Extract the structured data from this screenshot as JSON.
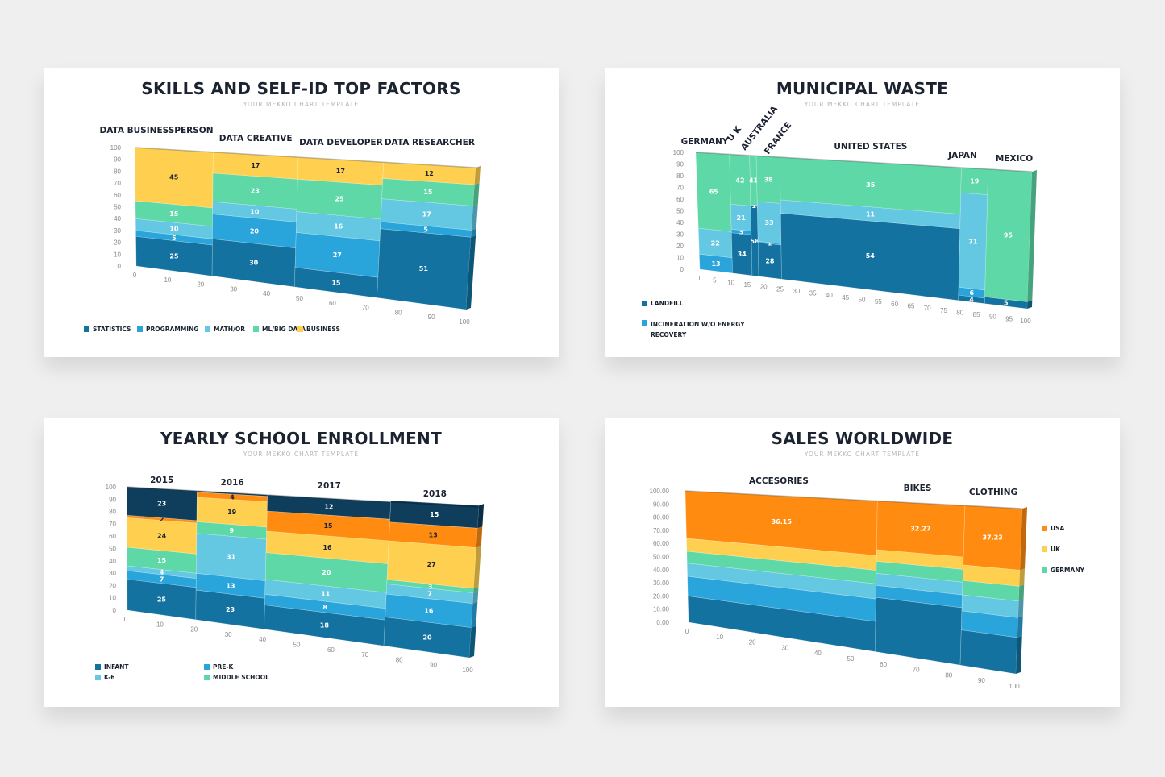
{
  "colors": {
    "navy": "#0f3d5c",
    "dark_blue": "#13729f",
    "blue": "#2aa5dc",
    "light_blue": "#64c8e2",
    "green": "#5fd8a8",
    "yellow": "#ffd050",
    "orange": "#ff8c10"
  },
  "chart_data": [
    {
      "type": "bar",
      "subtype": "mekko",
      "title": "SKILLS AND SELF-ID TOP FACTORS",
      "subtitle": "YOUR MEKKO CHART TEMPLATE",
      "categories": [
        "DATA BUSINESSPERSON",
        "DATA CREATIVE",
        "DATA DEVELOPER",
        "DATA RESEARCHER"
      ],
      "widths": [
        23,
        25,
        25,
        27
      ],
      "series": [
        {
          "name": "STATISTICS",
          "color": "#13729f",
          "values": [
            25,
            30,
            15,
            51
          ]
        },
        {
          "name": "PROGRAMMING",
          "color": "#2aa5dc",
          "values": [
            5,
            20,
            27,
            5
          ]
        },
        {
          "name": "MATH/OR",
          "color": "#64c8e2",
          "values": [
            10,
            10,
            16,
            17
          ]
        },
        {
          "name": "ML/BIG DATA",
          "color": "#5fd8a8",
          "values": [
            15,
            23,
            25,
            15
          ]
        },
        {
          "name": "BUSINESS",
          "color": "#ffd050",
          "values": [
            45,
            17,
            17,
            12
          ]
        }
      ],
      "yticks": [
        "0",
        "10",
        "20",
        "30",
        "40",
        "50",
        "60",
        "70",
        "80",
        "90",
        "100"
      ],
      "xticks": [
        "0",
        "10",
        "20",
        "30",
        "40",
        "50",
        "60",
        "70",
        "80",
        "90",
        "100"
      ],
      "ylim": [
        0,
        100
      ],
      "xlim": [
        0,
        100
      ],
      "legend": "bottom-left",
      "show_labels": true
    },
    {
      "type": "bar",
      "subtype": "mekko",
      "title": "MUNICIPAL WASTE",
      "subtitle": "YOUR MEKKO CHART TEMPLATE",
      "categories": [
        "GERMANY",
        "U K",
        "AUSTRALIA",
        "FRANCE",
        "UNITED STATES",
        "JAPAN",
        "MEXICO"
      ],
      "widths": [
        10,
        6,
        2,
        7,
        54,
        8,
        13
      ],
      "series": [
        {
          "name": "LANDFILL",
          "color": "#13729f",
          "values": [
            0,
            34,
            58,
            28,
            54,
            4,
            5
          ]
        },
        {
          "name": "INCINERATION W/O ENERGY RECOVERY",
          "color": "#2aa5dc",
          "values": [
            13,
            3,
            0,
            1,
            0,
            6,
            0
          ]
        },
        {
          "name": "",
          "color": "#64c8e2",
          "values": [
            22,
            21,
            1,
            33,
            11,
            71,
            0
          ]
        },
        {
          "name": "",
          "color": "#5fd8a8",
          "values": [
            65,
            42,
            41,
            38,
            35,
            19,
            95
          ]
        }
      ],
      "labels": [
        [
          "",
          "34",
          "58",
          "28",
          "54",
          "4",
          "5"
        ],
        [
          "13",
          "3",
          "",
          "1",
          "",
          "6",
          ""
        ],
        [
          "22",
          "21",
          "1",
          "33",
          "11",
          "71",
          ""
        ],
        [
          "65",
          "42",
          "41",
          "38",
          "35",
          "19",
          "95"
        ]
      ],
      "yticks": [
        "0",
        "10",
        "20",
        "30",
        "40",
        "50",
        "60",
        "70",
        "80",
        "90",
        "100"
      ],
      "xticks": [
        "0",
        "5",
        "10",
        "15",
        "20",
        "25",
        "30",
        "35",
        "40",
        "45",
        "50",
        "55",
        "60",
        "65",
        "70",
        "75",
        "80",
        "85",
        "90",
        "95",
        "100"
      ],
      "ylim": [
        0,
        100
      ],
      "xlim": [
        0,
        100
      ],
      "legend": "bottom-left"
    },
    {
      "type": "bar",
      "subtype": "mekko",
      "title": "YEARLY SCHOOL ENROLLMENT",
      "subtitle": "YOUR MEKKO CHART TEMPLATE",
      "categories": [
        "2015",
        "2016",
        "2017",
        "2018"
      ],
      "widths": [
        20,
        20,
        35,
        25
      ],
      "series": [
        {
          "name": "INFANT",
          "color": "#13729f",
          "values": [
            25,
            23,
            18,
            20
          ]
        },
        {
          "name": "PRE-K",
          "color": "#2aa5dc",
          "values": [
            7,
            13,
            8,
            16
          ]
        },
        {
          "name": "K-6",
          "color": "#64c8e2",
          "values": [
            4,
            31,
            11,
            7
          ]
        },
        {
          "name": "MIDDLE SCHOOL",
          "color": "#5fd8a8",
          "values": [
            15,
            9,
            20,
            3
          ]
        },
        {
          "name": "",
          "color": "#ffd050",
          "values": [
            24,
            19,
            16,
            27
          ]
        },
        {
          "name": "",
          "color": "#ff8c10",
          "values": [
            2,
            4,
            15,
            13
          ]
        },
        {
          "name": "",
          "color": "#0f3d5c",
          "values": [
            23,
            1,
            12,
            15
          ]
        }
      ],
      "labels": [
        [
          "25",
          "23",
          "18",
          "20"
        ],
        [
          "7",
          "13",
          "8",
          "16"
        ],
        [
          "4",
          "31",
          "11",
          "7"
        ],
        [
          "15",
          "9",
          "20",
          "3"
        ],
        [
          "24",
          "19",
          "16",
          "27"
        ],
        [
          "2",
          "4",
          "15",
          "13"
        ],
        [
          "23",
          "",
          "12",
          "15"
        ]
      ],
      "yticks": [
        "0",
        "10",
        "20",
        "30",
        "40",
        "50",
        "60",
        "70",
        "80",
        "90",
        "100"
      ],
      "xticks": [
        "0",
        "10",
        "20",
        "30",
        "40",
        "50",
        "60",
        "70",
        "80",
        "90",
        "100"
      ],
      "ylim": [
        0,
        100
      ],
      "xlim": [
        0,
        100
      ],
      "legend": "bottom-left"
    },
    {
      "type": "bar",
      "subtype": "mekko",
      "title": "SALES WORLDWIDE",
      "subtitle": "YOUR MEKKO CHART TEMPLATE",
      "categories": [
        "ACCESORIES",
        "BIKES",
        "CLOTHING"
      ],
      "widths": [
        57,
        26,
        17
      ],
      "series": [
        {
          "name": "",
          "color": "#13729f",
          "values": [
            20,
            36,
            22
          ]
        },
        {
          "name": "",
          "color": "#2aa5dc",
          "values": [
            15,
            8,
            12
          ]
        },
        {
          "name": "",
          "color": "#64c8e2",
          "values": [
            10,
            8,
            10
          ]
        },
        {
          "name": "GERMANY",
          "color": "#5fd8a8",
          "values": [
            9,
            8,
            9
          ]
        },
        {
          "name": "UK",
          "color": "#ffd050",
          "values": [
            9.85,
            7.73,
            9.77
          ]
        },
        {
          "name": "USA",
          "color": "#ff8c10",
          "values": [
            36.15,
            32.27,
            37.23
          ]
        }
      ],
      "labels": [
        [
          "",
          "",
          ""
        ],
        [
          "",
          "",
          ""
        ],
        [
          "",
          "",
          ""
        ],
        [
          "",
          "",
          ""
        ],
        [
          "",
          "",
          ""
        ],
        [
          "36.15",
          "32.27",
          "37.23"
        ]
      ],
      "legend_items": [
        "USA",
        "UK",
        "GERMANY"
      ],
      "yticks": [
        "0.00",
        "10.00",
        "20.00",
        "30.00",
        "40.00",
        "50.00",
        "60.00",
        "70.00",
        "80.00",
        "90.00",
        "100.00"
      ],
      "xticks": [
        "0",
        "10",
        "20",
        "30",
        "40",
        "50",
        "60",
        "70",
        "80",
        "90",
        "100"
      ],
      "ylim": [
        0,
        100
      ],
      "xlim": [
        0,
        100
      ],
      "legend": "right"
    }
  ]
}
